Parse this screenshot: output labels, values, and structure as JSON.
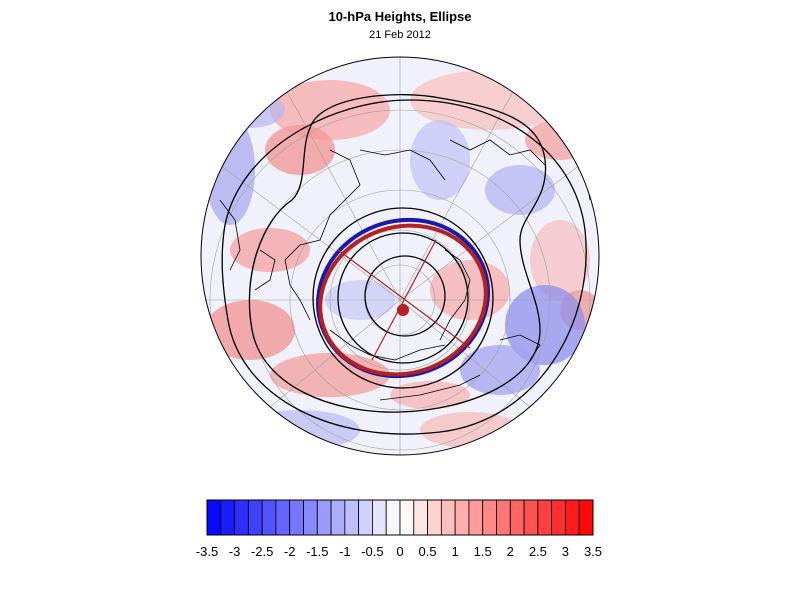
{
  "header": {
    "title": "10-hPa Heights, Ellipse",
    "date": "21 Feb 2012"
  },
  "colors": {
    "negative_max": "#0000ff",
    "positive_max": "#ff0000",
    "neutral": "#ffffff",
    "ellipse_fill": "#b22222",
    "ellipse_edge": "#1a1aaa",
    "contour": "#000000",
    "graticule": "#a0a0a0"
  },
  "colorbar": {
    "levels": [
      -3.5,
      -3.25,
      -3,
      -2.75,
      -2.5,
      -2.25,
      -2,
      -1.75,
      -1.5,
      -1.25,
      -1,
      -0.75,
      -0.5,
      -0.25,
      0,
      0.25,
      0.5,
      0.75,
      1,
      1.25,
      1.5,
      1.75,
      2,
      2.25,
      2.5,
      2.75,
      3,
      3.25,
      3.5
    ],
    "tick_labels": [
      "-3.5",
      "-3",
      "-2.5",
      "-2",
      "-1.5",
      "-1",
      "-0.5",
      "0",
      "0.5",
      "1",
      "1.5",
      "2",
      "2.5",
      "3",
      "3.5"
    ],
    "range": [
      -3.5,
      3.5
    ]
  }
}
